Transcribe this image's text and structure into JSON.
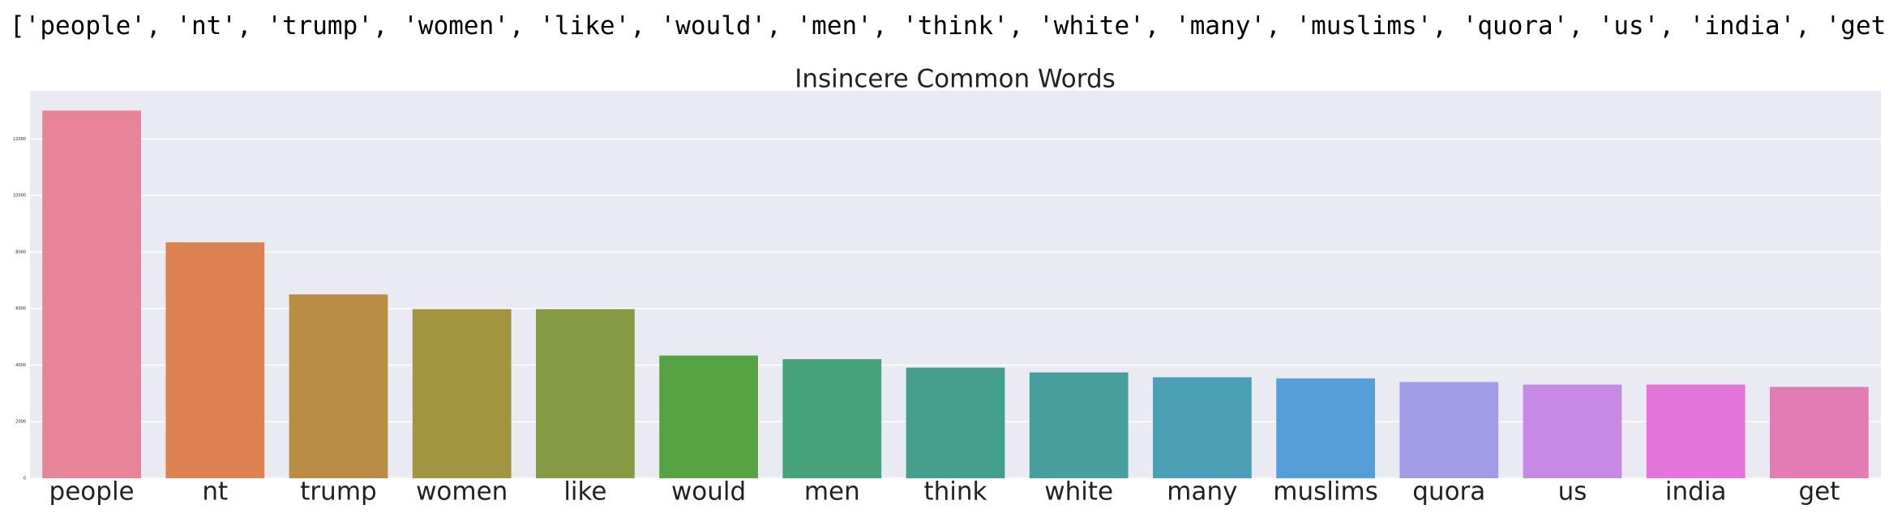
{
  "output": "['people', 'nt', 'trump', 'women', 'like', 'would', 'men', 'think', 'white', 'many', 'muslims', 'quora', 'us', 'india', 'get']",
  "chart_data": {
    "type": "bar",
    "title": "Insincere Common Words",
    "categories": [
      "people",
      "nt",
      "trump",
      "women",
      "like",
      "would",
      "men",
      "think",
      "white",
      "many",
      "muslims",
      "quora",
      "us",
      "india",
      "get"
    ],
    "values": [
      13000,
      8340,
      6500,
      5980,
      5980,
      4340,
      4210,
      3910,
      3740,
      3570,
      3530,
      3400,
      3310,
      3310,
      3230
    ],
    "colors": [
      "#e8849a",
      "#dc824f",
      "#b98e44",
      "#a2953f",
      "#869a44",
      "#57a344",
      "#45a27a",
      "#44a08c",
      "#479f9d",
      "#4a9fb5",
      "#549fd8",
      "#a29be6",
      "#c78ae4",
      "#e374d9",
      "#e37bb5"
    ],
    "ylim": [
      0,
      13700
    ],
    "yticks": [
      0,
      2000,
      4000,
      6000,
      8000,
      10000,
      12000
    ],
    "grid": true
  }
}
